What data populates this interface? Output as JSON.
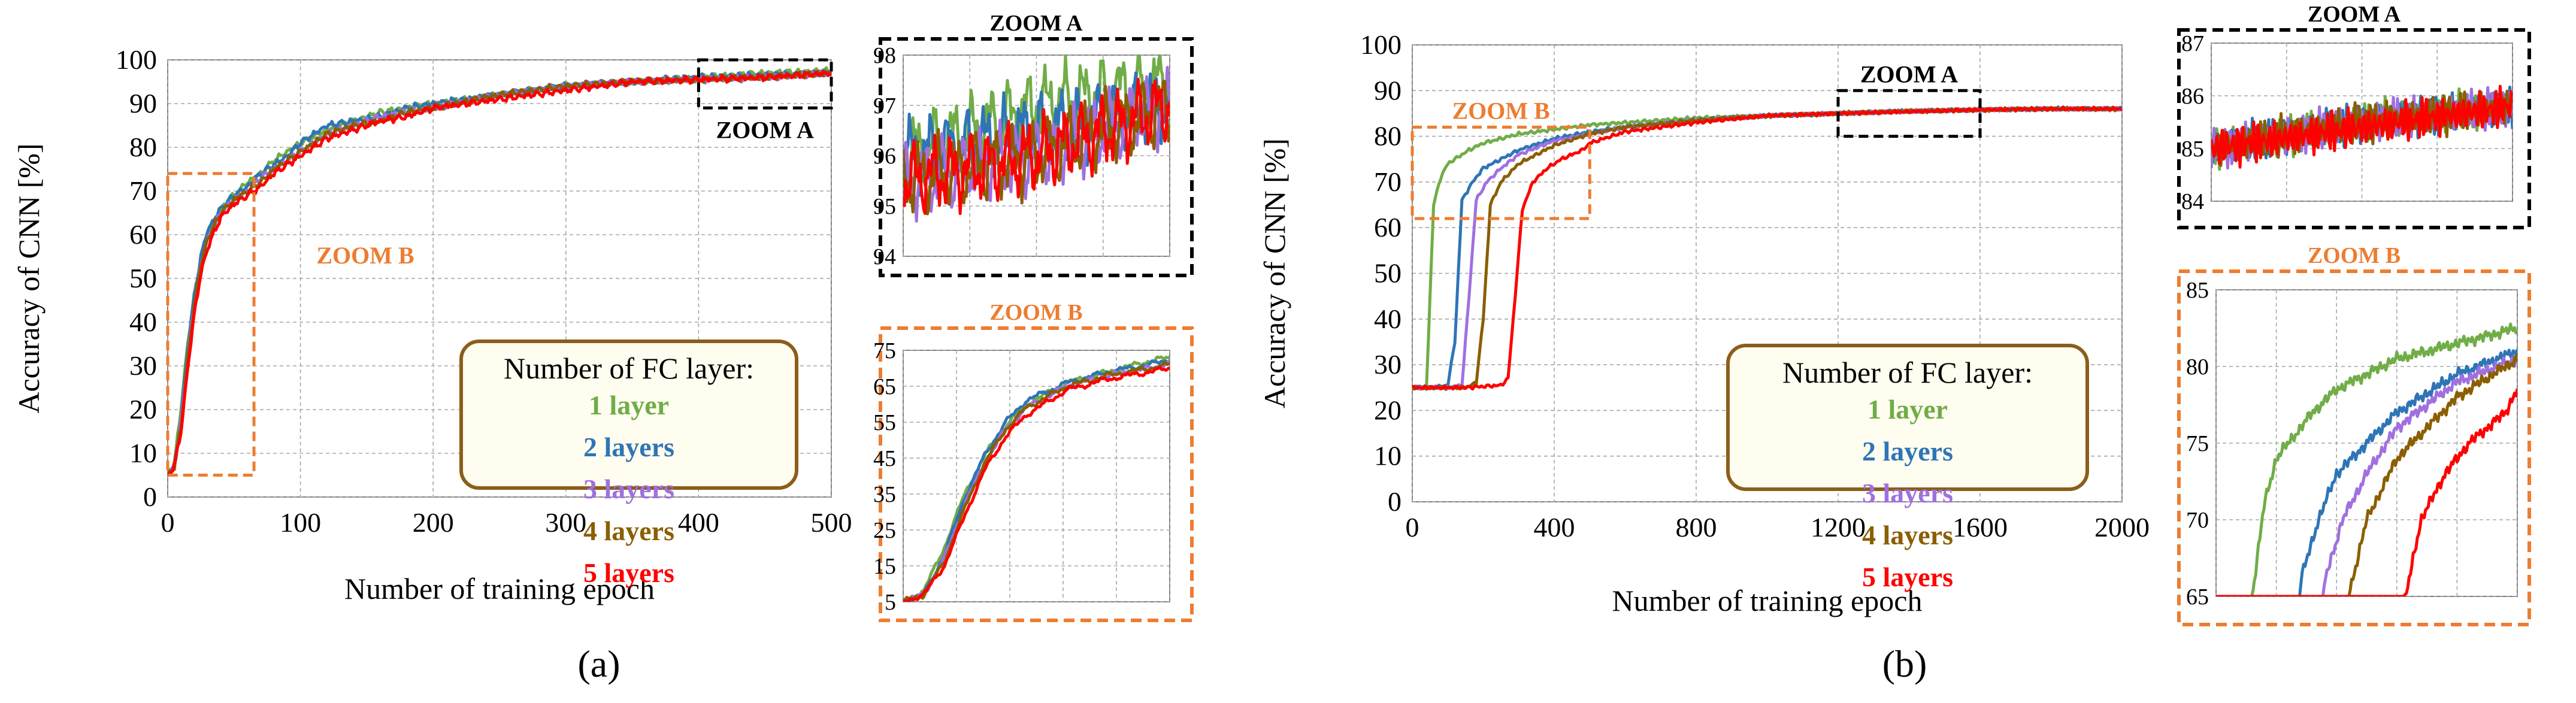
{
  "colors": {
    "l1": "#70AD47",
    "l2": "#2E75B6",
    "l3": "#A070E0",
    "l4": "#8B5E00",
    "l5": "#FF0000",
    "zoomA": "#000000",
    "zoomB": "#ED7D31",
    "legend_border": "#8B5E1A",
    "legend_fill": "#FFFDF0",
    "legend_title": "#000000",
    "grid": "#A6A6A6"
  },
  "legend": {
    "title": "Number of FC layer:",
    "entries": [
      "1 layer",
      "2 layers",
      "3 layers",
      "4 layers",
      "5 layers"
    ]
  },
  "panels": [
    {
      "label": "(a)",
      "label_letter": "a",
      "main": {
        "ylabel": "Accuracy of CNN [%]",
        "xlabel": "Number of training epoch",
        "xlim": [
          0,
          500
        ],
        "ylim": [
          0,
          100
        ],
        "xticks": [
          "0",
          "100",
          "200",
          "300",
          "400",
          "500"
        ],
        "yticks": [
          "0",
          "10",
          "20",
          "30",
          "40",
          "50",
          "60",
          "70",
          "80",
          "90",
          "100"
        ],
        "zoomA_label": "ZOOM A",
        "zoomB_label": "ZOOM B",
        "zoomA_box": {
          "x": [
            400,
            500
          ],
          "y": [
            89,
            100
          ]
        },
        "zoomB_box": {
          "x": [
            0,
            65
          ],
          "y": [
            5,
            74
          ]
        }
      },
      "zoomA": {
        "title": "ZOOM A",
        "xlim": [
          400,
          500
        ],
        "ylim": [
          94,
          98
        ],
        "yticks": [
          "94",
          "95",
          "96",
          "97",
          "98"
        ]
      },
      "zoomB": {
        "title": "ZOOM B",
        "xlim": [
          0,
          65
        ],
        "ylim": [
          5,
          75
        ],
        "yticks": [
          "5",
          "15",
          "25",
          "35",
          "45",
          "55",
          "65",
          "75"
        ]
      }
    },
    {
      "label": "(b)",
      "label_letter": "b",
      "main": {
        "ylabel": "Accuracy of CNN [%]",
        "xlabel": "Number of training epoch",
        "xlim": [
          0,
          2000
        ],
        "ylim": [
          0,
          100
        ],
        "xticks": [
          "0",
          "400",
          "800",
          "1200",
          "1600",
          "2000"
        ],
        "yticks": [
          "0",
          "10",
          "20",
          "30",
          "40",
          "50",
          "60",
          "70",
          "80",
          "90",
          "100"
        ],
        "zoomA_label": "ZOOM A",
        "zoomB_label": "ZOOM B",
        "zoomA_box": {
          "x": [
            1200,
            1600
          ],
          "y": [
            80,
            90
          ]
        },
        "zoomB_box": {
          "x": [
            0,
            500
          ],
          "y": [
            62,
            82
          ]
        }
      },
      "zoomA": {
        "title": "ZOOM A",
        "xlim": [
          1200,
          1600
        ],
        "ylim": [
          84,
          87
        ],
        "yticks": [
          "84",
          "85",
          "86",
          "87"
        ]
      },
      "zoomB": {
        "title": "ZOOM B",
        "xlim": [
          0,
          500
        ],
        "ylim": [
          65,
          85
        ],
        "yticks": [
          "65",
          "70",
          "75",
          "80",
          "85"
        ]
      }
    }
  ],
  "chart_data": [
    {
      "type": "line",
      "title": "(a)",
      "xlabel": "Number of training epoch",
      "ylabel": "Accuracy of CNN [%]",
      "xlim": [
        0,
        500
      ],
      "ylim": [
        0,
        100
      ],
      "series": [
        {
          "name": "1 layer",
          "x": [
            0,
            5,
            10,
            15,
            20,
            25,
            30,
            40,
            50,
            60,
            70,
            80,
            90,
            100,
            120,
            140,
            160,
            180,
            200,
            250,
            300,
            350,
            400,
            450,
            500
          ],
          "values": [
            5,
            8,
            20,
            35,
            46,
            54,
            60,
            66,
            69,
            72,
            74,
            77,
            79,
            81,
            84,
            86,
            88,
            89,
            90,
            92,
            94,
            95,
            96,
            97,
            97.5
          ]
        },
        {
          "name": "2 layers",
          "x": [
            0,
            5,
            10,
            15,
            20,
            25,
            30,
            40,
            50,
            60,
            70,
            80,
            90,
            100,
            120,
            140,
            160,
            180,
            200,
            250,
            300,
            350,
            400,
            450,
            500
          ],
          "values": [
            5,
            7,
            18,
            34,
            46,
            55,
            61,
            66,
            69,
            71,
            74,
            76,
            78,
            81,
            85,
            86,
            87,
            89,
            90,
            92,
            94,
            95,
            96,
            96.5,
            97
          ]
        },
        {
          "name": "3 layers",
          "x": [
            0,
            5,
            10,
            15,
            20,
            25,
            30,
            40,
            50,
            60,
            70,
            80,
            90,
            100,
            120,
            140,
            160,
            180,
            200,
            250,
            300,
            350,
            400,
            450,
            500
          ],
          "values": [
            5,
            7,
            17,
            32,
            44,
            53,
            59,
            65,
            68,
            70,
            73,
            75,
            77,
            79,
            83,
            85,
            87,
            88,
            89,
            92,
            94,
            95,
            95.5,
            96,
            97
          ]
        },
        {
          "name": "4 layers",
          "x": [
            0,
            5,
            10,
            15,
            20,
            25,
            30,
            40,
            50,
            60,
            70,
            80,
            90,
            100,
            120,
            140,
            160,
            180,
            200,
            250,
            300,
            350,
            400,
            450,
            500
          ],
          "values": [
            5,
            7,
            16,
            31,
            44,
            53,
            59,
            65,
            68,
            70,
            72,
            75,
            77,
            79,
            83,
            85,
            86,
            88,
            89,
            92,
            94,
            95,
            95.5,
            96,
            97
          ]
        },
        {
          "name": "5 layers",
          "x": [
            0,
            5,
            10,
            15,
            20,
            25,
            30,
            40,
            50,
            60,
            70,
            80,
            90,
            100,
            120,
            140,
            160,
            180,
            200,
            250,
            300,
            350,
            400,
            450,
            500
          ],
          "values": [
            5,
            7,
            15,
            29,
            42,
            51,
            57,
            64,
            67,
            69,
            71,
            74,
            76,
            78,
            82,
            84,
            86,
            87,
            89,
            91,
            93,
            95,
            95.5,
            96,
            97
          ]
        }
      ]
    },
    {
      "type": "line",
      "title": "(b)",
      "xlabel": "Number of training epoch",
      "ylabel": "Accuracy of CNN [%]",
      "xlim": [
        0,
        2000
      ],
      "ylim": [
        0,
        100
      ],
      "series": [
        {
          "name": "1 layer",
          "x": [
            0,
            20,
            40,
            60,
            80,
            100,
            130,
            160,
            200,
            250,
            300,
            400,
            500,
            600,
            800,
            1000,
            1200,
            1400,
            1600,
            1800,
            2000
          ],
          "values": [
            25,
            25,
            25,
            65,
            71,
            74,
            75.5,
            77,
            78.5,
            79.5,
            80.5,
            81.5,
            82.5,
            83,
            84,
            84.5,
            85,
            85.5,
            85.8,
            86,
            86
          ]
        },
        {
          "name": "2 layers",
          "x": [
            0,
            60,
            100,
            120,
            140,
            170,
            200,
            250,
            300,
            400,
            500,
            600,
            800,
            1000,
            1200,
            1400,
            1600,
            1800,
            2000
          ],
          "values": [
            25,
            25,
            25.5,
            35,
            66,
            70,
            73,
            75,
            77,
            79.5,
            81,
            82,
            83.5,
            84.5,
            85,
            85.5,
            85.8,
            86,
            86
          ]
        },
        {
          "name": "3 layers",
          "x": [
            0,
            100,
            140,
            160,
            180,
            210,
            250,
            300,
            400,
            500,
            600,
            800,
            1000,
            1200,
            1400,
            1600,
            1800,
            2000
          ],
          "values": [
            25,
            25,
            25.5,
            45,
            66,
            70,
            73,
            76,
            79,
            80.5,
            82,
            83.5,
            84.5,
            85,
            85.5,
            85.8,
            86,
            86
          ]
        },
        {
          "name": "4 layers",
          "x": [
            0,
            150,
            180,
            200,
            220,
            250,
            300,
            400,
            500,
            600,
            800,
            1000,
            1200,
            1400,
            1600,
            1800,
            2000
          ],
          "values": [
            25,
            25,
            26,
            40,
            65,
            70,
            74,
            78,
            80.5,
            82,
            83.5,
            84.5,
            85,
            85.5,
            85.8,
            86,
            86
          ]
        },
        {
          "name": "5 layers",
          "x": [
            0,
            150,
            250,
            270,
            290,
            310,
            340,
            380,
            420,
            480,
            500,
            600,
            800,
            1000,
            1200,
            1400,
            1600,
            1800,
            2000
          ],
          "values": [
            25,
            25,
            25.5,
            27,
            45,
            64,
            70,
            73,
            75,
            77,
            78.5,
            81,
            83,
            84.5,
            85,
            85.4,
            85.8,
            86,
            86
          ]
        }
      ]
    }
  ]
}
